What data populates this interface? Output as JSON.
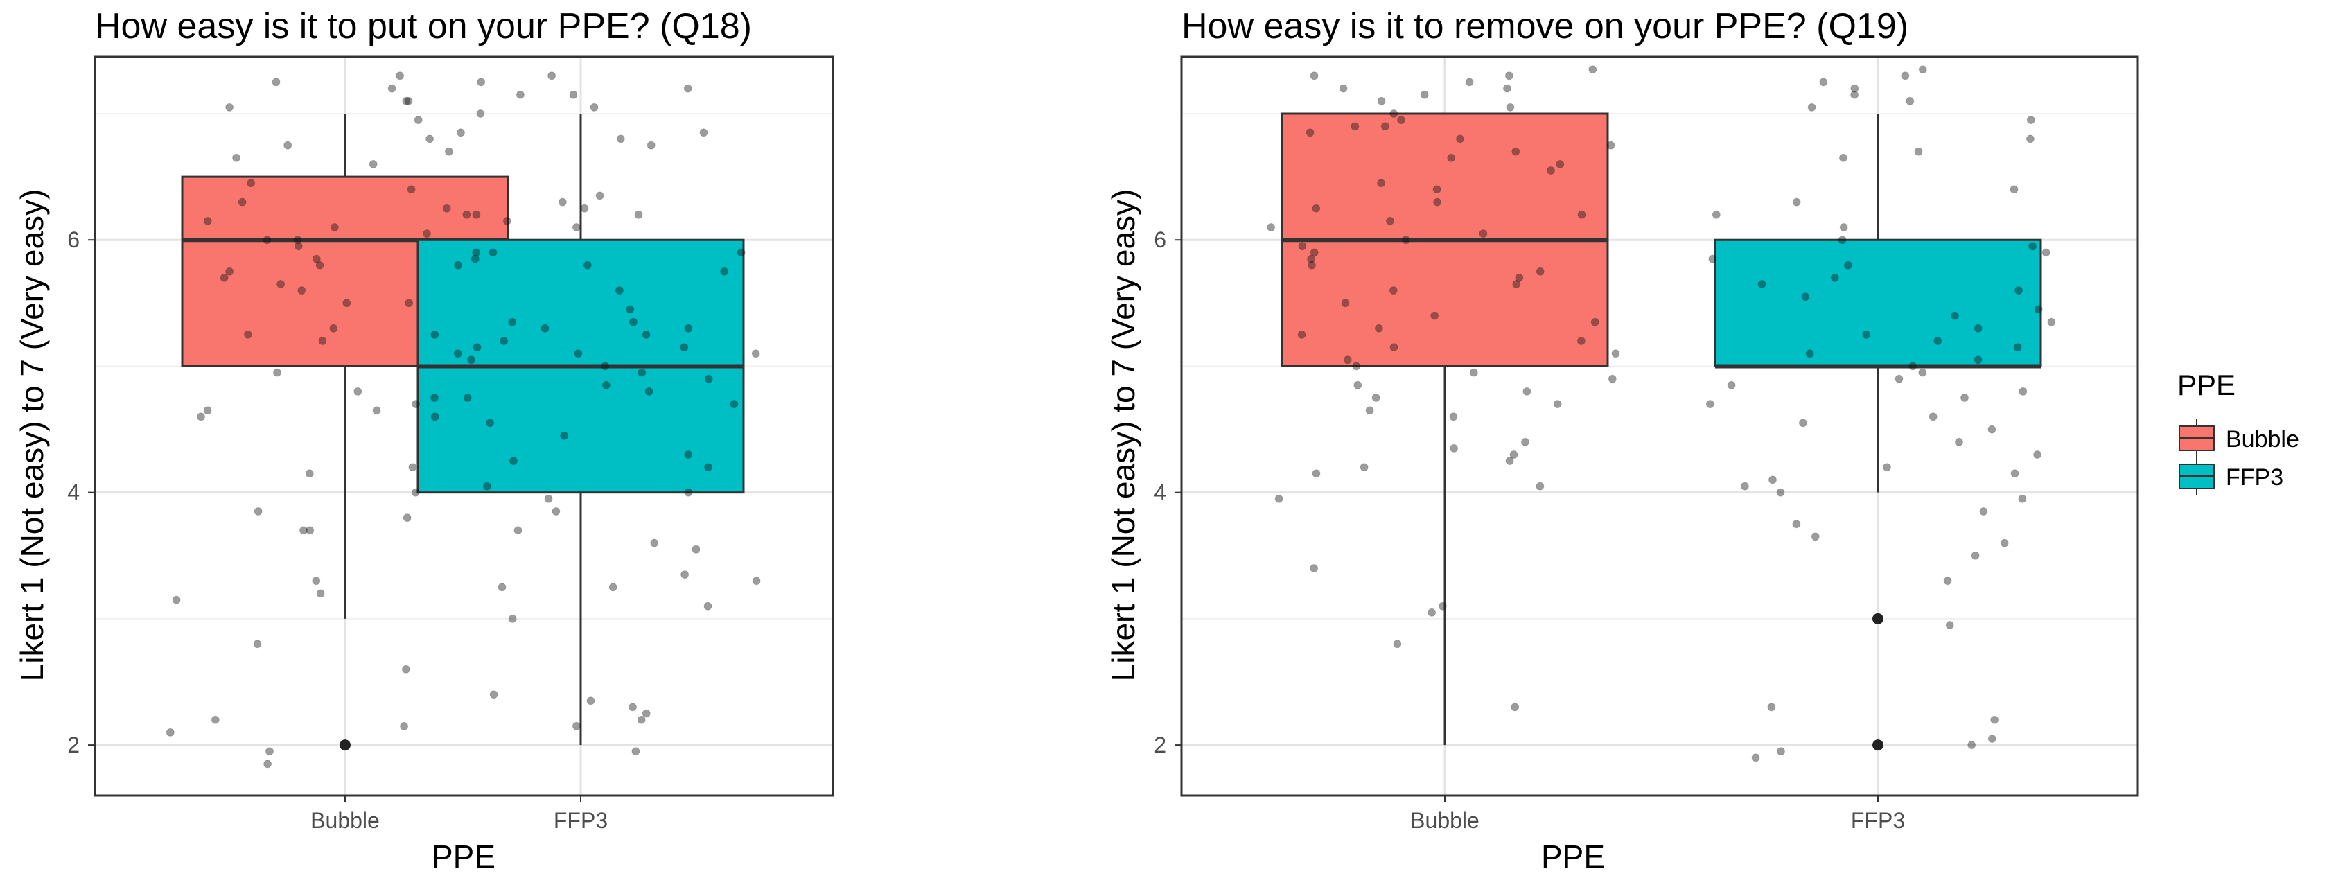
{
  "chart_data": [
    {
      "type": "boxplot",
      "title": "How easy is it to put on your PPE? (Q18)",
      "xlabel": "PPE",
      "ylabel": "Likert 1 (Not easy) to 7 (Very easy)",
      "categories": [
        "Bubble",
        "FFP3"
      ],
      "yticks": [
        2,
        4,
        6
      ],
      "ylim": [
        1.6,
        7.45
      ],
      "grid": true,
      "boxes": [
        {
          "name": "Bubble",
          "whisker_low": 3,
          "q1": 5,
          "median": 6,
          "q3": 6.5,
          "whisker_high": 7,
          "outliers": [
            2
          ]
        },
        {
          "name": "FFP3",
          "whisker_low": 2,
          "q1": 4,
          "median": 5,
          "q3": 6,
          "whisker_high": 7,
          "outliers": []
        }
      ],
      "jitter_points": {
        "Bubble": [
          7.3,
          7.25,
          7.2,
          7.15,
          7.1,
          7.1,
          7.05,
          7,
          6.95,
          6.85,
          6.8,
          6.75,
          6.7,
          6.65,
          6.6,
          6.45,
          6.3,
          6.25,
          6.2,
          6.2,
          6.15,
          6.1,
          6.05,
          6,
          6,
          5.95,
          5.9,
          5.9,
          5.85,
          5.8,
          5.8,
          5.75,
          5.7,
          5.65,
          5.6,
          5.5,
          5.35,
          5.3,
          5.25,
          5.25,
          5.2,
          5.15,
          5.1,
          4.95,
          4.8,
          4.75,
          4.7,
          4.65,
          4.65,
          4.6,
          4.2,
          4.15,
          4,
          3.85,
          3.7,
          3.7,
          3.3,
          3.25,
          3.2,
          3.15,
          2.8,
          2.2,
          2.15,
          2.1,
          1.95,
          1.85
        ],
        "FFP3": [
          7.3,
          7.25,
          7.2,
          7.15,
          7.05,
          6.85,
          6.8,
          6.75,
          6.4,
          6.35,
          6.3,
          6.25,
          6.2,
          6.15,
          6.1,
          5.9,
          5.85,
          5.8,
          5.75,
          5.6,
          5.5,
          5.45,
          5.35,
          5.3,
          5.3,
          5.25,
          5.2,
          5.15,
          5.1,
          5.1,
          5.05,
          5,
          4.95,
          4.9,
          4.85,
          4.8,
          4.75,
          4.7,
          4.6,
          4.55,
          4.45,
          4.3,
          4.25,
          4.2,
          4.05,
          4,
          3.95,
          3.85,
          3.8,
          3.7,
          3.6,
          3.55,
          3.35,
          3.3,
          3.25,
          3.1,
          3,
          2.6,
          2.4,
          2.35,
          2.3,
          2.25,
          2.2,
          2.15,
          1.95
        ]
      }
    },
    {
      "type": "boxplot",
      "title": "How easy is it to remove on your PPE? (Q19)",
      "xlabel": "PPE",
      "ylabel": "Likert 1 (Not easy) to 7 (Very easy)",
      "categories": [
        "Bubble",
        "FFP3"
      ],
      "yticks": [
        2,
        4,
        6
      ],
      "ylim": [
        1.6,
        7.45
      ],
      "grid": true,
      "boxes": [
        {
          "name": "Bubble",
          "whisker_low": 2,
          "q1": 5,
          "median": 6,
          "q3": 7,
          "whisker_high": 7,
          "outliers": []
        },
        {
          "name": "FFP3",
          "whisker_low": 4,
          "q1": 5,
          "median": 5,
          "q3": 6,
          "whisker_high": 7,
          "outliers": [
            3,
            2
          ]
        }
      ],
      "jitter_points": {
        "Bubble": [
          7.35,
          7.3,
          7.3,
          7.25,
          7.2,
          7.2,
          7.15,
          7.1,
          7.05,
          7,
          6.95,
          6.9,
          6.9,
          6.85,
          6.8,
          6.75,
          6.7,
          6.65,
          6.6,
          6.55,
          6.45,
          6.4,
          6.3,
          6.25,
          6.2,
          6.15,
          6.1,
          6.05,
          6,
          5.95,
          5.9,
          5.85,
          5.8,
          5.75,
          5.7,
          5.65,
          5.6,
          5.5,
          5.4,
          5.35,
          5.3,
          5.25,
          5.2,
          5.15,
          5.1,
          5.05,
          5,
          4.95,
          4.9,
          4.85,
          4.8,
          4.75,
          4.7,
          4.65,
          4.6,
          4.4,
          4.35,
          4.3,
          4.25,
          4.2,
          4.15,
          4.05,
          3.95,
          3.4,
          3.1,
          3.05,
          2.8,
          2.3
        ],
        "FFP3": [
          7.35,
          7.3,
          7.25,
          7.2,
          7.15,
          7.1,
          7.05,
          6.95,
          6.8,
          6.7,
          6.65,
          6.4,
          6.3,
          6.2,
          6.1,
          6,
          5.95,
          5.9,
          5.85,
          5.8,
          5.7,
          5.65,
          5.6,
          5.55,
          5.45,
          5.4,
          5.35,
          5.3,
          5.25,
          5.2,
          5.15,
          5.1,
          5.05,
          5,
          4.95,
          4.9,
          4.85,
          4.8,
          4.75,
          4.7,
          4.6,
          4.55,
          4.5,
          4.4,
          4.3,
          4.2,
          4.15,
          4.1,
          4.05,
          4,
          3.95,
          3.85,
          3.75,
          3.65,
          3.6,
          3.5,
          3.3,
          2.95,
          2.3,
          2.2,
          2.05,
          2,
          1.95,
          1.9
        ]
      }
    }
  ],
  "legend": {
    "title": "PPE",
    "items": [
      {
        "label": "Bubble",
        "color": "#f8766d"
      },
      {
        "label": "FFP3",
        "color": "#00bfc4"
      }
    ]
  },
  "colors": {
    "Bubble": "#f8766d",
    "FFP3": "#00bfc4"
  }
}
